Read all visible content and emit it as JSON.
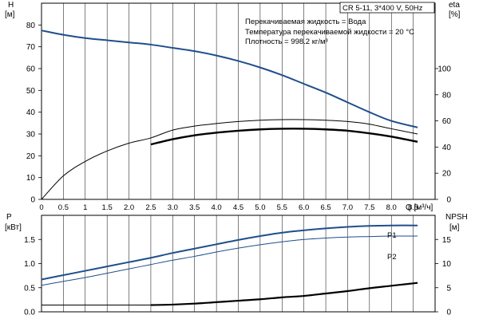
{
  "title_box": "CR 5-11, 3*400 V, 50Hz",
  "info_lines": [
    "Перекачиваемая жидкость = Вода",
    "Температура перекачиваемой жидкости = 20 °C",
    "Плотность = 998.2 кг/м³"
  ],
  "x_axis": {
    "label": "Q [м³/ч]",
    "ticks": [
      "0",
      "0.5",
      "1",
      "1.5",
      "2.0",
      "2.5",
      "3.0",
      "3.5",
      "4.0",
      "4.5",
      "5.0",
      "5.5",
      "6.0",
      "6.5",
      "7.0",
      "7.5",
      "8.0",
      "8.5"
    ]
  },
  "top_panel": {
    "left_axis": {
      "label_line1": "H",
      "label_line2": "[м]",
      "ticks": [
        "0",
        "10",
        "20",
        "30",
        "40",
        "50",
        "60",
        "70",
        "80"
      ]
    },
    "right_axis": {
      "label_line1": "eta",
      "label_line2": "[%]",
      "ticks": [
        "0",
        "20",
        "40",
        "60",
        "80",
        "100"
      ]
    }
  },
  "bottom_panel": {
    "left_axis": {
      "label_line1": "P",
      "label_line2": "[кВт]",
      "ticks": [
        "0.0",
        "0.5",
        "1.0",
        "1.5"
      ]
    },
    "right_axis": {
      "label_line1": "NPSH",
      "label_line2": "[м]",
      "ticks": [
        "0",
        "5",
        "10",
        "15"
      ]
    },
    "series_labels": [
      "P1",
      "P2"
    ]
  },
  "colors": {
    "head": "#1f4e8c",
    "power": "#1f4e8c",
    "efficiency": "#000000",
    "npsh": "#000000",
    "grid": "#000000"
  },
  "chart_data": [
    {
      "type": "line",
      "xlabel": "Q [м³/ч]",
      "ylabel": "H [м]",
      "xlim": [
        0,
        9
      ],
      "ylim": [
        0,
        90
      ],
      "y2label": "eta [%]",
      "y2lim": [
        0,
        150
      ],
      "grid": "vertical",
      "series": [
        {
          "key": "head",
          "axis": "left",
          "x": [
            0,
            0.5,
            1,
            1.5,
            2,
            2.5,
            3,
            3.5,
            4,
            4.5,
            5,
            5.5,
            6,
            6.5,
            7,
            7.5,
            8,
            8.6
          ],
          "y": [
            77.5,
            75.5,
            74,
            73,
            72,
            71,
            69.5,
            68,
            66,
            63.5,
            60.5,
            57,
            53,
            49,
            44.5,
            40,
            36,
            33
          ]
        },
        {
          "key": "eta_upper",
          "axis": "right",
          "x": [
            0,
            0.5,
            1,
            1.5,
            2,
            2.5,
            3,
            3.5,
            4,
            4.5,
            5,
            5.5,
            6,
            6.5,
            7,
            7.5,
            8,
            8.6
          ],
          "y": [
            0,
            18,
            29,
            37,
            43,
            47,
            53,
            56,
            58,
            59.5,
            60.5,
            61,
            61,
            60.5,
            59.5,
            57.5,
            54,
            50
          ]
        },
        {
          "key": "eta_lower",
          "axis": "right",
          "x": [
            2.5,
            3,
            3.5,
            4,
            4.5,
            5,
            5.5,
            6,
            6.5,
            7,
            7.5,
            8,
            8.6
          ],
          "y": [
            42,
            46,
            49,
            51,
            52.5,
            53.5,
            54,
            54,
            53.5,
            52.5,
            50.5,
            48,
            44
          ]
        }
      ]
    },
    {
      "type": "line",
      "xlabel": "Q [м³/ч]",
      "ylabel": "P [кВт]",
      "xlim": [
        0,
        9
      ],
      "ylim": [
        0,
        2
      ],
      "y2label": "NPSH [м]",
      "y2lim": [
        0,
        20
      ],
      "grid": "vertical",
      "series": [
        {
          "name": "P1",
          "axis": "left",
          "x": [
            0,
            0.5,
            1,
            1.5,
            2,
            2.5,
            3,
            3.5,
            4,
            4.5,
            5,
            5.5,
            6,
            6.5,
            7,
            7.5,
            8,
            8.6
          ],
          "y": [
            0.67,
            0.76,
            0.85,
            0.94,
            1.03,
            1.12,
            1.22,
            1.31,
            1.4,
            1.49,
            1.57,
            1.64,
            1.69,
            1.73,
            1.76,
            1.78,
            1.79,
            1.79
          ]
        },
        {
          "name": "P2",
          "axis": "left",
          "x": [
            0,
            0.5,
            1,
            1.5,
            2,
            2.5,
            3,
            3.5,
            4,
            4.5,
            5,
            5.5,
            6,
            6.5,
            7,
            7.5,
            8,
            8.6
          ],
          "y": [
            0.55,
            0.63,
            0.71,
            0.8,
            0.89,
            0.98,
            1.07,
            1.15,
            1.24,
            1.32,
            1.39,
            1.45,
            1.5,
            1.53,
            1.55,
            1.56,
            1.57,
            1.57
          ]
        },
        {
          "key": "npsh",
          "axis": "right",
          "x": [
            0,
            2.5,
            3,
            3.5,
            4,
            4.5,
            5,
            5.5,
            6,
            6.5,
            7,
            7.5,
            8,
            8.6
          ],
          "y": [
            1.4,
            1.4,
            1.5,
            1.7,
            2.0,
            2.3,
            2.6,
            3.0,
            3.3,
            3.8,
            4.3,
            4.9,
            5.4,
            6.0
          ]
        }
      ]
    }
  ]
}
